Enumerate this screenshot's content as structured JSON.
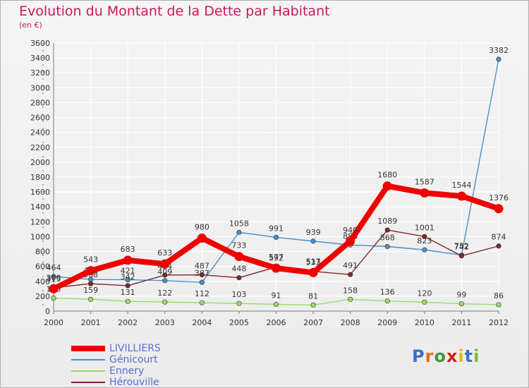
{
  "title": "Evolution du Montant de la Dette par Habitant",
  "subtitle": "(en €)",
  "logo": "Proxiti",
  "chart_data": {
    "type": "line",
    "title": "Evolution du Montant de la Dette par Habitant",
    "ylabel": "(en €)",
    "ylim": [
      0,
      3600
    ],
    "yticks": [
      0,
      200,
      400,
      600,
      800,
      1000,
      1200,
      1400,
      1600,
      1800,
      2000,
      2200,
      2400,
      2600,
      2800,
      3000,
      3200,
      3400,
      3600
    ],
    "x": [
      "2000",
      "2001",
      "2002",
      "2003",
      "2004",
      "2005",
      "2006",
      "2007",
      "2008",
      "2009",
      "2010",
      "2011",
      "2012"
    ],
    "grid": true,
    "legend_position": "bottom-left",
    "series": [
      {
        "name": "Génicourt",
        "color": "#4a90c8",
        "values": [
          464,
          425,
          421,
          409,
          387,
          1058,
          991,
          939,
          888,
          868,
          823,
          752,
          3382
        ],
        "labels": [
          "464",
          "425",
          "421",
          "409",
          "387",
          "1058",
          "991",
          "939",
          "888",
          "868",
          "823",
          "752",
          "3382"
        ]
      },
      {
        "name": "Ennery",
        "color": "#99dd66",
        "values": [
          175,
          159,
          131,
          122,
          112,
          103,
          91,
          81,
          158,
          136,
          120,
          99,
          86
        ],
        "labels": [
          "175",
          "159",
          "131",
          "122",
          "112",
          "103",
          "91",
          "81",
          "158",
          "136",
          "120",
          "99",
          "86"
        ]
      },
      {
        "name": "Hérouville",
        "color": "#7a2a2a",
        "values": [
          315,
          368,
          342,
          484,
          487,
          448,
          592,
          533,
          491,
          1089,
          1001,
          742,
          874
        ],
        "labels": [
          "315",
          "368",
          "342",
          "484",
          "487",
          "448",
          "592",
          "533",
          "491",
          "1089",
          "1001",
          "742",
          "874"
        ]
      },
      {
        "name": "LIVILLIERS",
        "color": "#ee0000",
        "values": [
          300,
          543,
          683,
          633,
          980,
          733,
          577,
          517,
          940,
          1680,
          1587,
          1544,
          1376
        ],
        "labels": [
          "300",
          "543",
          "683",
          "633",
          "980",
          "733",
          "577",
          "517",
          "940",
          "1680",
          "1587",
          "1544",
          "1376"
        ]
      }
    ]
  },
  "legend": [
    {
      "name": "LIVILLIERS",
      "color": "#ee0000"
    },
    {
      "name": "Génicourt",
      "color": "#4a90c8"
    },
    {
      "name": "Ennery",
      "color": "#99dd66"
    },
    {
      "name": "Hérouville",
      "color": "#7a2a2a"
    }
  ]
}
